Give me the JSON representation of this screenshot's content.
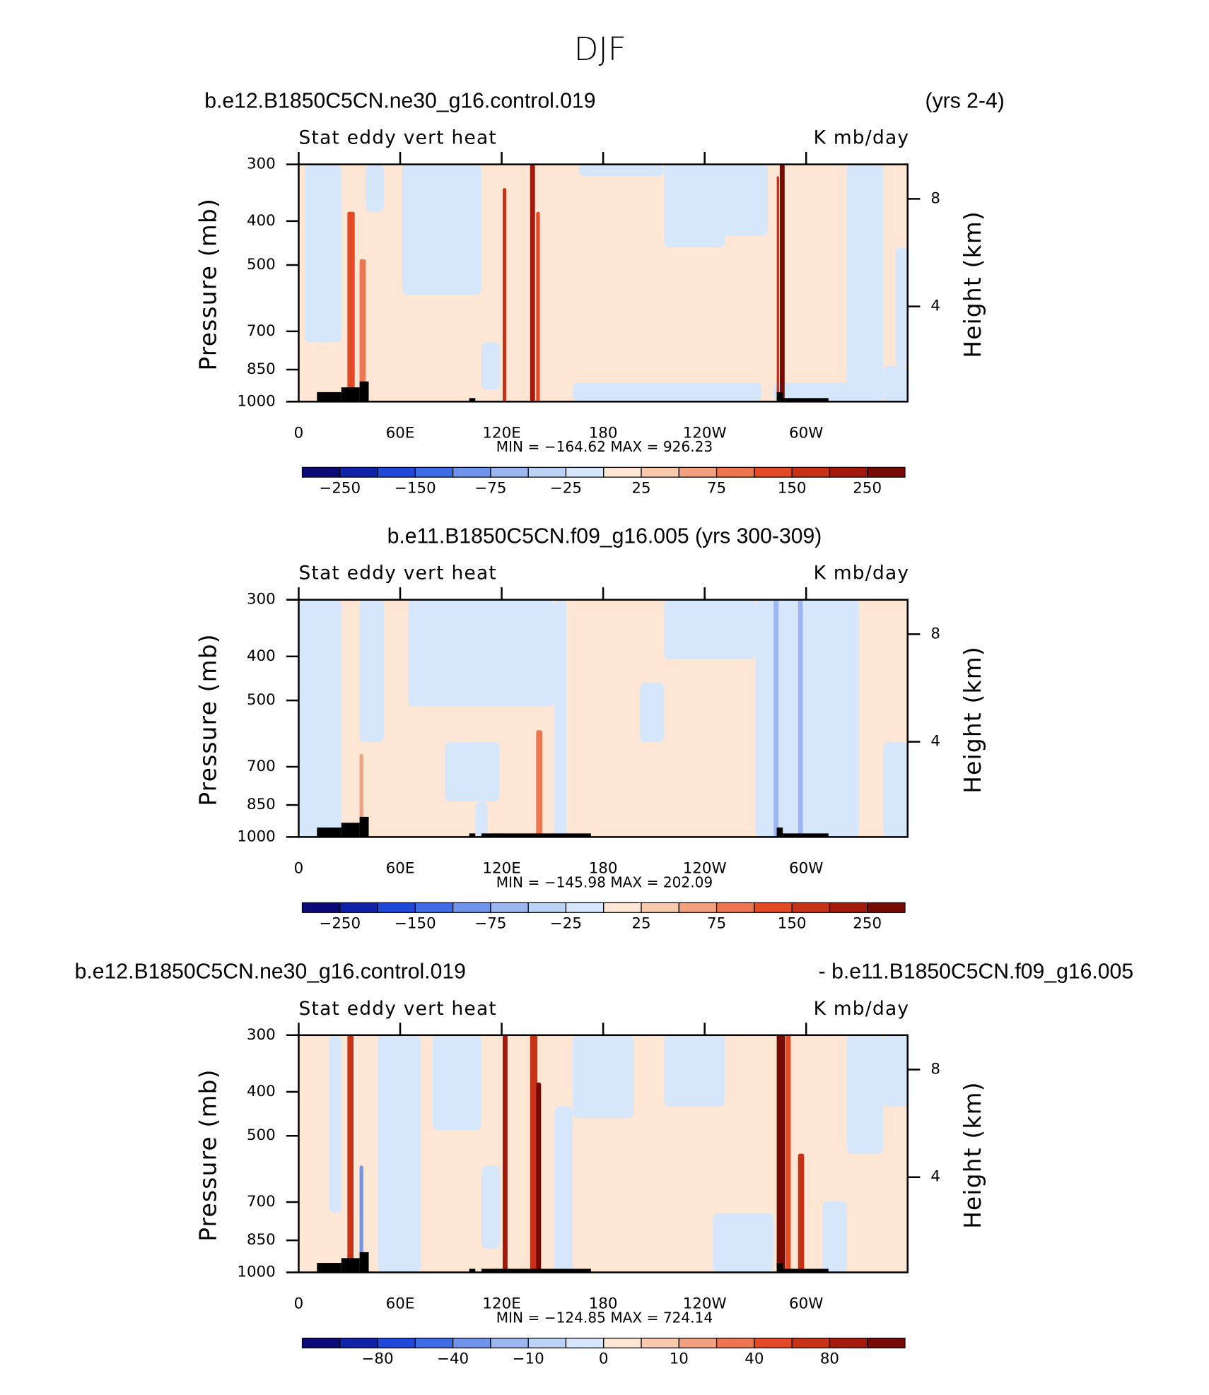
{
  "title": "DJF",
  "chart_data": [
    {
      "type": "contour",
      "title_left": "b.e12.B1850C5CN.ne30_g16.control.019",
      "title_right": "(yrs 2-4)",
      "left_string": "Stat eddy vert heat",
      "right_string": "K mb/day",
      "ylabel": "Pressure (mb)",
      "y2label": "Height (km)",
      "stats": "MIN = −164.62   MAX = 926.23",
      "xlim": [
        0,
        360
      ],
      "xticks": [
        0,
        {
          "value": 60,
          "label": "60E"
        },
        {
          "value": 120,
          "label": "120E"
        },
        180,
        {
          "value": 240,
          "label": "120W"
        },
        {
          "value": 300,
          "label": "60W"
        }
      ],
      "ylim": [
        1000,
        300
      ],
      "ylog": true,
      "yticks": [
        300,
        400,
        500,
        700,
        850,
        1000
      ],
      "y2lim": [
        0.46,
        9.28
      ],
      "y2ticks": [
        4,
        8
      ],
      "colorbar": {
        "colors": [
          "#0a0a78",
          "#0f22a8",
          "#1f47d8",
          "#3e6be6",
          "#6f94ec",
          "#9bb6f0",
          "#bdd3f6",
          "#d6e7fb",
          "#fde6d3",
          "#f8c9ad",
          "#f3a07f",
          "#ed7550",
          "#e24a26",
          "#c83216",
          "#a31a0c",
          "#780a06"
        ],
        "labels": [
          {
            "value": -250,
            "label": "−250"
          },
          {
            "value": -150,
            "label": "−150"
          },
          {
            "value": -75,
            "label": "−75"
          },
          {
            "value": -25,
            "label": "−25"
          },
          25,
          75,
          150,
          250
        ]
      }
    },
    {
      "type": "contour",
      "title": "b.e11.B1850C5CN.f09_g16.005 (yrs 300-309)",
      "left_string": "Stat eddy vert heat",
      "right_string": "K mb/day",
      "ylabel": "Pressure (mb)",
      "y2label": "Height (km)",
      "stats": "MIN = −145.98   MAX = 202.09",
      "xlim": [
        0,
        360
      ],
      "xticks": [
        0,
        {
          "value": 60,
          "label": "60E"
        },
        {
          "value": 120,
          "label": "120E"
        },
        180,
        {
          "value": 240,
          "label": "120W"
        },
        {
          "value": 300,
          "label": "60W"
        }
      ],
      "ylim": [
        1000,
        300
      ],
      "ylog": true,
      "yticks": [
        300,
        400,
        500,
        700,
        850,
        1000
      ],
      "y2lim": [
        0.46,
        9.28
      ],
      "y2ticks": [
        4,
        8
      ],
      "colorbar": {
        "colors": [
          "#0a0a78",
          "#0f22a8",
          "#1f47d8",
          "#3e6be6",
          "#6f94ec",
          "#9bb6f0",
          "#bdd3f6",
          "#d6e7fb",
          "#fde6d3",
          "#f8c9ad",
          "#f3a07f",
          "#ed7550",
          "#e24a26",
          "#c83216",
          "#a31a0c",
          "#780a06"
        ],
        "labels": [
          {
            "value": -250,
            "label": "−250"
          },
          {
            "value": -150,
            "label": "−150"
          },
          {
            "value": -75,
            "label": "−75"
          },
          {
            "value": -25,
            "label": "−25"
          },
          25,
          75,
          150,
          250
        ]
      }
    },
    {
      "type": "contour",
      "title_left": "b.e12.B1850C5CN.ne30_g16.control.019",
      "title_right": "- b.e11.B1850C5CN.f09_g16.005",
      "left_string": "Stat eddy vert heat",
      "right_string": "K mb/day",
      "ylabel": "Pressure (mb)",
      "y2label": "Height (km)",
      "stats": "MIN = −124.85   MAX = 724.14",
      "xlim": [
        0,
        360
      ],
      "xticks": [
        0,
        {
          "value": 60,
          "label": "60E"
        },
        {
          "value": 120,
          "label": "120E"
        },
        180,
        {
          "value": 240,
          "label": "120W"
        },
        {
          "value": 300,
          "label": "60W"
        }
      ],
      "ylim": [
        1000,
        300
      ],
      "ylog": true,
      "yticks": [
        300,
        400,
        500,
        700,
        850,
        1000
      ],
      "y2lim": [
        0.46,
        9.28
      ],
      "y2ticks": [
        4,
        8
      ],
      "colorbar": {
        "colors": [
          "#0a0a78",
          "#0f22a8",
          "#1f47d8",
          "#3e6be6",
          "#6f94ec",
          "#9bb6f0",
          "#bdd3f6",
          "#d6e7fb",
          "#fde6d3",
          "#f8c9ad",
          "#f3a07f",
          "#ed7550",
          "#e24a26",
          "#c83216",
          "#a31a0c",
          "#780a06"
        ],
        "labels": [
          {
            "value": -80,
            "label": "−80"
          },
          {
            "value": -40,
            "label": "−40"
          },
          {
            "value": -10,
            "label": "−10"
          },
          0,
          10,
          40,
          80
        ]
      }
    }
  ]
}
